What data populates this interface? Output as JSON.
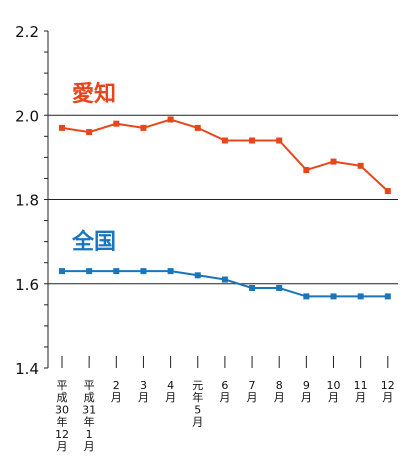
{
  "chart_data": {
    "type": "line",
    "x_labels": [
      [
        "平",
        "成",
        "30",
        "年",
        "12",
        "月"
      ],
      [
        "平",
        "成",
        "31",
        "年",
        "1",
        "月"
      ],
      [
        "2",
        "月"
      ],
      [
        "3",
        "月"
      ],
      [
        "4",
        "月"
      ],
      [
        "元",
        "年",
        "5",
        "月"
      ],
      [
        "6",
        "月"
      ],
      [
        "7",
        "月"
      ],
      [
        "8",
        "月"
      ],
      [
        "9",
        "月"
      ],
      [
        "10",
        "月"
      ],
      [
        "11",
        "月"
      ],
      [
        "12",
        "月"
      ]
    ],
    "series": [
      {
        "name": "愛知",
        "color": "#e8461a",
        "values": [
          1.97,
          1.96,
          1.98,
          1.97,
          1.99,
          1.97,
          1.94,
          1.94,
          1.94,
          1.87,
          1.89,
          1.88,
          1.82
        ]
      },
      {
        "name": "全国",
        "color": "#1a75bb",
        "values": [
          1.63,
          1.63,
          1.63,
          1.63,
          1.63,
          1.62,
          1.61,
          1.59,
          1.59,
          1.57,
          1.57,
          1.57,
          1.57
        ]
      }
    ],
    "ylim": [
      1.4,
      2.2
    ],
    "yticks": [
      "1.4",
      "1.6",
      "1.8",
      "2.0",
      "2.2"
    ],
    "gridlines": [
      1.6,
      1.8,
      2.0
    ]
  }
}
